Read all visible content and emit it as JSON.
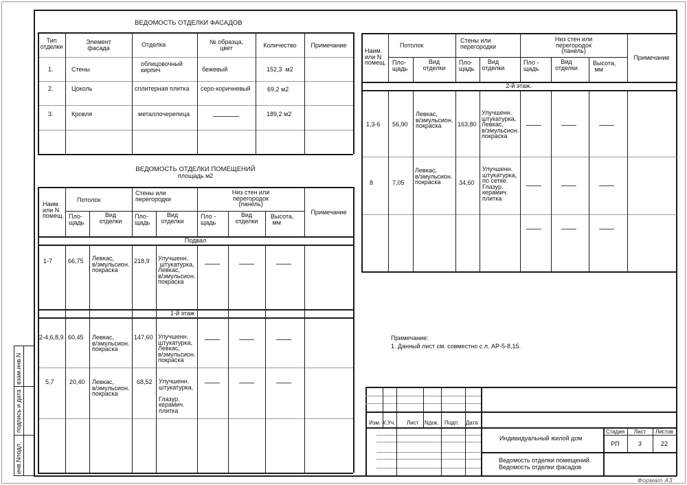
{
  "facades": {
    "title": "ВЕДОМОСТЬ ОТДЕЛКИ ФАСАДОВ",
    "headers": [
      "Тип\nотделки",
      "Элемент\nфасада",
      "Отделка",
      "№ образца,\nцвет",
      "Количество",
      "Примечание"
    ],
    "rows": [
      {
        "type": "1.",
        "element": "Стены",
        "finish": "облицовочный\nкирпич",
        "sample": "бежевый",
        "qty": "152,3  м2"
      },
      {
        "type": "2.",
        "element": "Цоколь",
        "finish": "сплитерная плитка",
        "sample": "серо-коричневый",
        "qty": "69,2 м2"
      },
      {
        "type": "3.",
        "element": "Кровля",
        "finish": "металлочерепица",
        "sample": "—",
        "qty": "189,2 м2"
      }
    ]
  },
  "rooms": {
    "title": "ВЕДОМОСТЬ ОТДЕЛКИ ПОМЕЩЕНИЙ",
    "subtitle": "площадь м2",
    "headers": {
      "room": "Наим.\nили N\nпомещ.",
      "ceiling": "Потолок",
      "walls": "Стены или\nперегородки",
      "panel": "Низ стен или\nперегородок\n(панель)",
      "note": "Примечание",
      "area": "Пло-\nщадь",
      "kind": "Вид\nотделки",
      "panel_area": "Пло -\nщадь",
      "height": "Высота,\n мм"
    },
    "sections": [
      "Подвал",
      "1-й этаж",
      "2-й этаж."
    ],
    "rows_left": [
      {
        "room": "1-7",
        "ceil_area": "66,75",
        "ceil_kind": "Левкас,\nв/эмульсион.\nпокраска",
        "wall_area": "218,9",
        "wall_kind": "Улучшенн.\n штукатурка,\nЛевкас,\nв/эмульсион.\nпокраска"
      },
      {
        "room": "2-4,6,8,9",
        "ceil_area": "60,45",
        "ceil_kind": "Левкас,\nв/эмульсион.\nпокраска",
        "wall_area": "147,60",
        "wall_kind": "Улучшенн.\nштукатурка,\nЛевкас,\nв/эмульсион.\nпокраска"
      },
      {
        "room": "5,7",
        "ceil_area": "20,40",
        "ceil_kind": "Левкас,\nв/эмульсион.\nпокраска",
        "wall_area": "68,52",
        "wall_kind": "Улучшенн.\nштукатурка,\n\nГлазур.\nкерамич.\nплитка"
      }
    ],
    "rows_right": [
      {
        "room": "1,3-6",
        "ceil_area": "56,90",
        "ceil_kind": "Левкас,\nв/эмульсион.\nпокраска",
        "wall_area": "163,80",
        "wall_kind": "Улучшенн.\nштукатурка,\nЛевкас,\nв/эмульсион.\nпокраска"
      },
      {
        "room": "8",
        "ceil_area": "7,05",
        "ceil_kind": "Левкас,\nв/эмульсион.\nпокраска",
        "wall_area": "34,60",
        "wall_kind": "Улучшенн.\nштукатурка,\nпо сетке.\nГлазур.\nкерамич.\nплитка"
      }
    ]
  },
  "note": {
    "label": "Примечание:",
    "text": "1. Данный лист см. совместно с л. АР-5-8,15."
  },
  "title_block": {
    "columns": [
      "Изм.",
      "К.Уч.",
      "Лист",
      "Nдок.",
      "Подп.",
      "Дата"
    ],
    "project": "Индивидуальный жилой дом",
    "sheet_title": "Ведомость отделки помещений.\nВедомость отделки фасадов",
    "stage_label": "Стадия",
    "sheet_label": "Лист",
    "sheets_label": "Листов",
    "stage": "РП",
    "sheet": "3",
    "sheets": "22"
  },
  "side_stamp": [
    "взам.инв.N",
    "подпись и дата",
    "инв.Nподл."
  ],
  "format": "Формат  А3"
}
